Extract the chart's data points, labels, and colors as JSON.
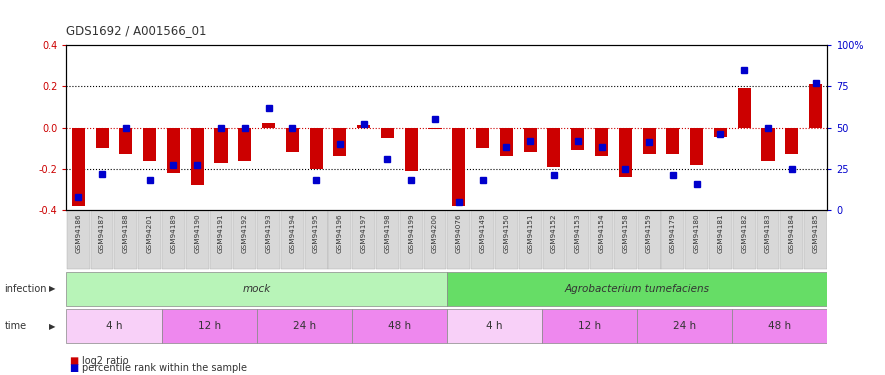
{
  "title": "GDS1692 / A001566_01",
  "samples": [
    "GSM94186",
    "GSM94187",
    "GSM94188",
    "GSM94201",
    "GSM94189",
    "GSM94190",
    "GSM94191",
    "GSM94192",
    "GSM94193",
    "GSM94194",
    "GSM94195",
    "GSM94196",
    "GSM94197",
    "GSM94198",
    "GSM94199",
    "GSM94200",
    "GSM94076",
    "GSM94149",
    "GSM94150",
    "GSM94151",
    "GSM94152",
    "GSM94153",
    "GSM94154",
    "GSM94158",
    "GSM94159",
    "GSM94179",
    "GSM94180",
    "GSM94181",
    "GSM94182",
    "GSM94183",
    "GSM94184",
    "GSM94185"
  ],
  "log2_ratio": [
    -0.38,
    -0.1,
    -0.13,
    -0.16,
    -0.22,
    -0.28,
    -0.17,
    -0.16,
    0.02,
    -0.12,
    -0.2,
    -0.14,
    0.01,
    -0.05,
    -0.21,
    -0.005,
    -0.38,
    -0.1,
    -0.14,
    -0.12,
    -0.19,
    -0.11,
    -0.14,
    -0.24,
    -0.13,
    -0.13,
    -0.18,
    -0.045,
    0.19,
    -0.16,
    -0.13,
    0.21
  ],
  "percentile": [
    8,
    22,
    50,
    18,
    27,
    27,
    50,
    50,
    62,
    50,
    18,
    40,
    52,
    31,
    18,
    55,
    5,
    18,
    38,
    42,
    21,
    42,
    38,
    25,
    41,
    21,
    16,
    46,
    85,
    50,
    25,
    77
  ],
  "ylim_left": [
    -0.4,
    0.4
  ],
  "ylim_right": [
    0,
    100
  ],
  "yticks_left": [
    -0.4,
    -0.2,
    0.0,
    0.2,
    0.4
  ],
  "yticks_right": [
    0,
    25,
    50,
    75,
    100
  ],
  "bar_color": "#cc0000",
  "dot_color": "#0000cc",
  "zero_line_color": "#cc0000",
  "bg_color": "#ffffff",
  "tick_label_color_left": "#cc0000",
  "tick_label_color_right": "#0000cc",
  "legend_red_label": "log2 ratio",
  "legend_blue_label": "percentile rank within the sample",
  "infection_label": "infection",
  "time_label": "time",
  "mock_color": "#b8f4b8",
  "agro_color": "#66dd66",
  "time_4h_color": "#f8d0f8",
  "time_other_color": "#ee88ee",
  "tick_box_color": "#d8d8d8",
  "time_groups": [
    {
      "label": "4 h",
      "start": 0,
      "end": 4
    },
    {
      "label": "12 h",
      "start": 4,
      "end": 8
    },
    {
      "label": "24 h",
      "start": 8,
      "end": 12
    },
    {
      "label": "48 h",
      "start": 12,
      "end": 16
    },
    {
      "label": "4 h",
      "start": 16,
      "end": 20
    },
    {
      "label": "12 h",
      "start": 20,
      "end": 24
    },
    {
      "label": "24 h",
      "start": 24,
      "end": 28
    },
    {
      "label": "48 h",
      "start": 28,
      "end": 32
    }
  ]
}
